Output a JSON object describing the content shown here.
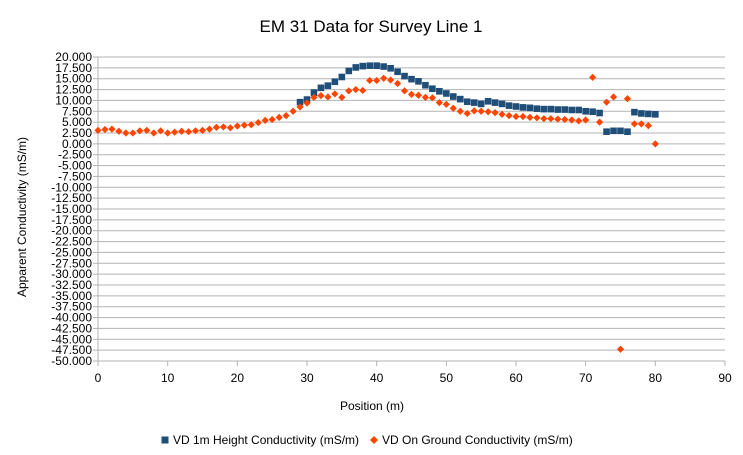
{
  "chart_data": {
    "type": "scatter",
    "title": "EM 31 Data for Survey Line 1",
    "xlabel": "Position (m)",
    "ylabel": "Apparent Conductivity (mS/m)",
    "xlim": [
      0,
      90
    ],
    "ylim": [
      -50,
      20
    ],
    "xticks": [
      0,
      10,
      20,
      30,
      40,
      50,
      60,
      70,
      80,
      90
    ],
    "yticks": [
      20,
      17.5,
      15,
      12.5,
      10,
      7.5,
      5,
      2.5,
      0,
      -2.5,
      -5,
      -7.5,
      -10,
      -12.5,
      -15,
      -17.5,
      -20,
      -22.5,
      -25,
      -27.5,
      -30,
      -32.5,
      -35,
      -37.5,
      -40,
      -42.5,
      -45,
      -47.5,
      -50
    ],
    "xtick_labels": [
      "0",
      "10",
      "20",
      "30",
      "40",
      "50",
      "60",
      "70",
      "80",
      "90"
    ],
    "ytick_labels": [
      "20.000",
      "17.500",
      "15.000",
      "12.500",
      "10.000",
      "7.500",
      "5.000",
      "2.500",
      "0.000",
      "-2.500",
      "-5.000",
      "-7.500",
      "-10.000",
      "-12.500",
      "-15.000",
      "-17.500",
      "-20.000",
      "-22.500",
      "-25.000",
      "-27.500",
      "-30.000",
      "-32.500",
      "-35.000",
      "-37.500",
      "-40.000",
      "-42.500",
      "-45.000",
      "-47.500",
      "-50.000"
    ],
    "grid": true,
    "legend_position": "bottom",
    "series": [
      {
        "name": "VD 1m Height Conductivity (mS/m)",
        "color": "#1f4e79",
        "marker": "square",
        "x": [
          29,
          30,
          31,
          32,
          33,
          34,
          35,
          36,
          37,
          38,
          39,
          40,
          41,
          42,
          43,
          44,
          45,
          46,
          47,
          48,
          49,
          50,
          51,
          52,
          53,
          54,
          55,
          56,
          57,
          58,
          59,
          60,
          61,
          62,
          63,
          64,
          65,
          66,
          67,
          68,
          69,
          70,
          71,
          72,
          73,
          74,
          75,
          76,
          77,
          78,
          79,
          80
        ],
        "y": [
          9.6,
          10.2,
          11.8,
          12.9,
          13.4,
          14.3,
          15.4,
          16.8,
          17.6,
          17.9,
          18.0,
          18.0,
          17.8,
          17.4,
          16.6,
          15.6,
          14.9,
          14.4,
          13.5,
          12.7,
          12.1,
          11.6,
          10.9,
          10.3,
          9.7,
          9.5,
          9.2,
          9.8,
          9.5,
          9.2,
          8.8,
          8.6,
          8.4,
          8.3,
          8.1,
          8.0,
          8.0,
          7.9,
          7.9,
          7.8,
          7.8,
          7.5,
          7.4,
          7.1,
          2.8,
          3.0,
          3.0,
          2.8,
          7.3,
          7.0,
          6.9,
          6.8
        ]
      },
      {
        "name": "VD On Ground Conductivity (mS/m)",
        "color": "#ff4500",
        "marker": "diamond",
        "x": [
          0,
          1,
          2,
          3,
          4,
          5,
          6,
          7,
          8,
          9,
          10,
          11,
          12,
          13,
          14,
          15,
          16,
          17,
          18,
          19,
          20,
          21,
          22,
          23,
          24,
          25,
          26,
          27,
          28,
          29,
          30,
          31,
          32,
          33,
          34,
          35,
          36,
          37,
          38,
          39,
          40,
          41,
          42,
          43,
          44,
          45,
          46,
          47,
          48,
          49,
          50,
          51,
          52,
          53,
          54,
          55,
          56,
          57,
          58,
          59,
          60,
          61,
          62,
          63,
          64,
          65,
          66,
          67,
          68,
          69,
          70,
          71,
          72,
          73,
          74,
          75,
          76,
          77,
          78,
          79,
          80
        ],
        "y": [
          3.1,
          3.3,
          3.4,
          2.9,
          2.5,
          2.5,
          3.0,
          3.1,
          2.5,
          3.0,
          2.5,
          2.7,
          2.9,
          2.8,
          3.0,
          3.1,
          3.4,
          3.8,
          3.9,
          3.7,
          4.1,
          4.3,
          4.4,
          4.9,
          5.4,
          5.6,
          6.1,
          6.5,
          7.5,
          8.5,
          9.4,
          10.7,
          11.1,
          10.8,
          11.5,
          10.7,
          12.2,
          12.5,
          12.3,
          14.6,
          14.6,
          15.1,
          14.7,
          13.9,
          12.2,
          11.4,
          11.2,
          10.7,
          10.6,
          9.5,
          9.1,
          8.2,
          7.5,
          7.0,
          7.6,
          7.5,
          7.4,
          7.2,
          6.8,
          6.5,
          6.3,
          6.3,
          6.1,
          6.0,
          5.8,
          5.8,
          5.7,
          5.6,
          5.5,
          5.3,
          5.5,
          15.3,
          5.0,
          9.6,
          10.8,
          -47.3,
          10.4,
          4.6,
          4.6,
          4.2,
          0.0
        ]
      }
    ]
  }
}
